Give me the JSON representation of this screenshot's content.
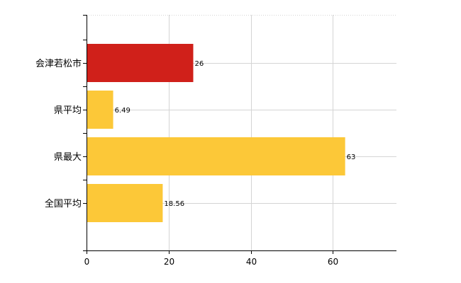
{
  "chart_data": {
    "type": "bar",
    "orientation": "horizontal",
    "categories": [
      "会津若松市",
      "県平均",
      "県最大",
      "全国平均"
    ],
    "values": [
      26,
      6.49,
      63,
      18.56
    ],
    "value_labels": [
      "26",
      "6.49",
      "63",
      "18.56"
    ],
    "bar_colors": [
      "#d0201a",
      "#fcc838",
      "#fcc838",
      "#fcc838"
    ],
    "x_ticks": [
      0,
      20,
      40,
      60
    ],
    "xlim": [
      0,
      75.5
    ],
    "title": "",
    "xlabel": "",
    "ylabel": "",
    "grid": true,
    "legend": "none",
    "colors": {
      "highlight": "#d0201a",
      "default": "#fcc838",
      "grid": "#d4d4d4",
      "axis": "#000000"
    }
  }
}
